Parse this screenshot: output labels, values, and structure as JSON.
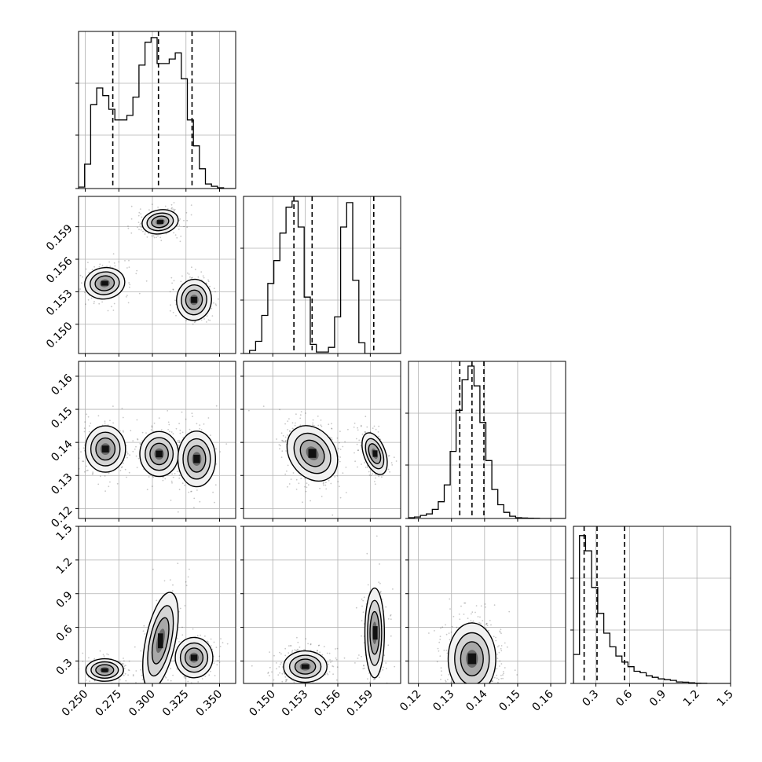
{
  "chart_data": {
    "type": "corner",
    "parameters": [
      "p1",
      "p2",
      "p3",
      "p4"
    ],
    "axis_ranges": {
      "p1": [
        0.245,
        0.362
      ],
      "p2": [
        0.1473,
        0.1618
      ],
      "p3": [
        0.117,
        0.1645
      ],
      "p4": [
        0.1,
        1.5
      ]
    },
    "grid": true,
    "tick_labels": {
      "p1": {
        "values": [
          0.25,
          0.275,
          0.3,
          0.325,
          0.35
        ],
        "labels": [
          "0.250",
          "0.275",
          "0.300",
          "0.325",
          "0.350"
        ]
      },
      "p2": {
        "values": [
          0.15,
          0.153,
          0.156,
          0.159
        ],
        "labels": [
          "0.150",
          "0.153",
          "0.156",
          "0.159"
        ]
      },
      "p3": {
        "values": [
          0.12,
          0.13,
          0.14,
          0.15,
          0.16
        ],
        "labels": [
          "0.12",
          "0.13",
          "0.14",
          "0.15",
          "0.16"
        ]
      },
      "p4": {
        "values": [
          0.3,
          0.6,
          0.9,
          1.2,
          1.5
        ],
        "labels": [
          "0.3",
          "0.6",
          "0.9",
          "1.2",
          "1.5"
        ]
      }
    },
    "quantiles": {
      "p1": [
        0.2705,
        0.3045,
        0.3295
      ],
      "p2": [
        0.15195,
        0.15363,
        0.15932
      ],
      "p3": [
        0.1325,
        0.1362,
        0.1398
      ],
      "p4": [
        0.195,
        0.31,
        0.555
      ]
    },
    "histograms": {
      "p1": {
        "edges": [
          0.245,
          0.2495,
          0.254,
          0.2585,
          0.263,
          0.2675,
          0.272,
          0.2765,
          0.281,
          0.2855,
          0.29,
          0.2945,
          0.299,
          0.3035,
          0.308,
          0.3125,
          0.317,
          0.3215,
          0.326,
          0.3305,
          0.335,
          0.3395,
          0.344,
          0.3485,
          0.353,
          0.3575,
          0.362
        ],
        "counts": [
          0.01,
          0.16,
          0.55,
          0.66,
          0.61,
          0.52,
          0.45,
          0.45,
          0.48,
          0.6,
          0.81,
          0.96,
          0.99,
          0.82,
          0.82,
          0.85,
          0.89,
          0.72,
          0.45,
          0.28,
          0.13,
          0.03,
          0.015,
          0.005,
          0,
          0
        ]
      },
      "p2": {
        "edges": [
          0.1473,
          0.14786,
          0.14842,
          0.14898,
          0.14954,
          0.1501,
          0.15066,
          0.15122,
          0.15178,
          0.15234,
          0.1529,
          0.15346,
          0.15402,
          0.15458,
          0.15514,
          0.1557,
          0.15626,
          0.15682,
          0.15738,
          0.15794,
          0.1585,
          0.15906,
          0.15962,
          0.16018,
          0.16074,
          0.1613,
          0.1618
        ],
        "counts": [
          0.0,
          0.02,
          0.08,
          0.25,
          0.46,
          0.61,
          0.79,
          0.96,
          1.0,
          0.83,
          0.37,
          0.06,
          0.01,
          0.01,
          0.04,
          0.24,
          0.83,
          0.99,
          0.48,
          0.07,
          0.0,
          0,
          0,
          0,
          0,
          0
        ]
      },
      "p3": {
        "edges": [
          0.117,
          0.1188,
          0.1206,
          0.1224,
          0.1242,
          0.126,
          0.1278,
          0.1296,
          0.1314,
          0.1332,
          0.135,
          0.1368,
          0.1386,
          0.1404,
          0.1422,
          0.144,
          0.1458,
          0.1476,
          0.1494,
          0.1512,
          0.153,
          0.1548,
          0.1566,
          0.1584,
          0.1602,
          0.162,
          0.1645
        ],
        "counts": [
          0.005,
          0.01,
          0.02,
          0.03,
          0.06,
          0.11,
          0.22,
          0.44,
          0.71,
          0.91,
          1.0,
          0.87,
          0.63,
          0.38,
          0.19,
          0.09,
          0.04,
          0.015,
          0.005,
          0.003,
          0.002,
          0.001,
          0,
          0,
          0,
          0
        ]
      },
      "p4": {
        "edges": [
          0.1,
          0.154,
          0.208,
          0.262,
          0.316,
          0.37,
          0.424,
          0.478,
          0.532,
          0.586,
          0.64,
          0.694,
          0.748,
          0.802,
          0.856,
          0.91,
          0.964,
          1.018,
          1.072,
          1.126,
          1.18,
          1.234,
          1.288,
          1.342,
          1.396,
          1.45,
          1.5
        ],
        "counts": [
          0.19,
          0.97,
          0.87,
          0.63,
          0.46,
          0.33,
          0.24,
          0.18,
          0.14,
          0.11,
          0.08,
          0.07,
          0.05,
          0.04,
          0.03,
          0.025,
          0.02,
          0.01,
          0.008,
          0.004,
          0.002,
          0.001,
          0,
          0,
          0,
          0
        ]
      }
    },
    "blobs": {
      "p1-p2": [
        {
          "cx": 0.3058,
          "cy": 0.15945,
          "sx": 0.0068,
          "sy": 0.00055,
          "w": 0.34,
          "rot": -10
        },
        {
          "cx": 0.2645,
          "cy": 0.15378,
          "sx": 0.0075,
          "sy": 0.00072,
          "w": 0.33,
          "rot": -8
        },
        {
          "cx": 0.331,
          "cy": 0.15225,
          "sx": 0.0065,
          "sy": 0.00095,
          "w": 0.33,
          "rot": 5
        }
      ],
      "p1-p3": [
        {
          "cx": 0.265,
          "cy": 0.138,
          "sx": 0.0075,
          "sy": 0.0035,
          "w": 0.34,
          "rot": 0
        },
        {
          "cx": 0.305,
          "cy": 0.1365,
          "sx": 0.0072,
          "sy": 0.0034,
          "w": 0.35,
          "rot": 0
        },
        {
          "cx": 0.333,
          "cy": 0.135,
          "sx": 0.007,
          "sy": 0.0042,
          "w": 0.31,
          "rot": 0
        }
      ],
      "p2-p3": [
        {
          "cx": 0.15365,
          "cy": 0.1367,
          "sx": 0.00105,
          "sy": 0.0045,
          "w": 0.66,
          "rot": -35
        },
        {
          "cx": 0.1594,
          "cy": 0.1366,
          "sx": 0.0005,
          "sy": 0.0033,
          "w": 0.34,
          "rot": -20
        }
      ],
      "p1-p4": [
        {
          "cx": 0.2645,
          "cy": 0.22,
          "sx": 0.007,
          "sy": 0.05,
          "w": 0.33,
          "rot": 0
        },
        {
          "cx": 0.306,
          "cy": 0.48,
          "sx": 0.0055,
          "sy": 0.22,
          "w": 0.34,
          "rot": 12
        },
        {
          "cx": 0.331,
          "cy": 0.33,
          "sx": 0.007,
          "sy": 0.09,
          "w": 0.33,
          "rot": 0
        }
      ],
      "p2-p4": [
        {
          "cx": 0.153,
          "cy": 0.25,
          "sx": 0.001,
          "sy": 0.07,
          "w": 0.66,
          "rot": 0
        },
        {
          "cx": 0.1594,
          "cy": 0.55,
          "sx": 0.00045,
          "sy": 0.2,
          "w": 0.34,
          "rot": 0
        }
      ],
      "p3-p4": [
        {
          "cx": 0.1362,
          "cy": 0.32,
          "sx": 0.0036,
          "sy": 0.16,
          "w": 1.0,
          "rot": 0
        }
      ]
    }
  }
}
